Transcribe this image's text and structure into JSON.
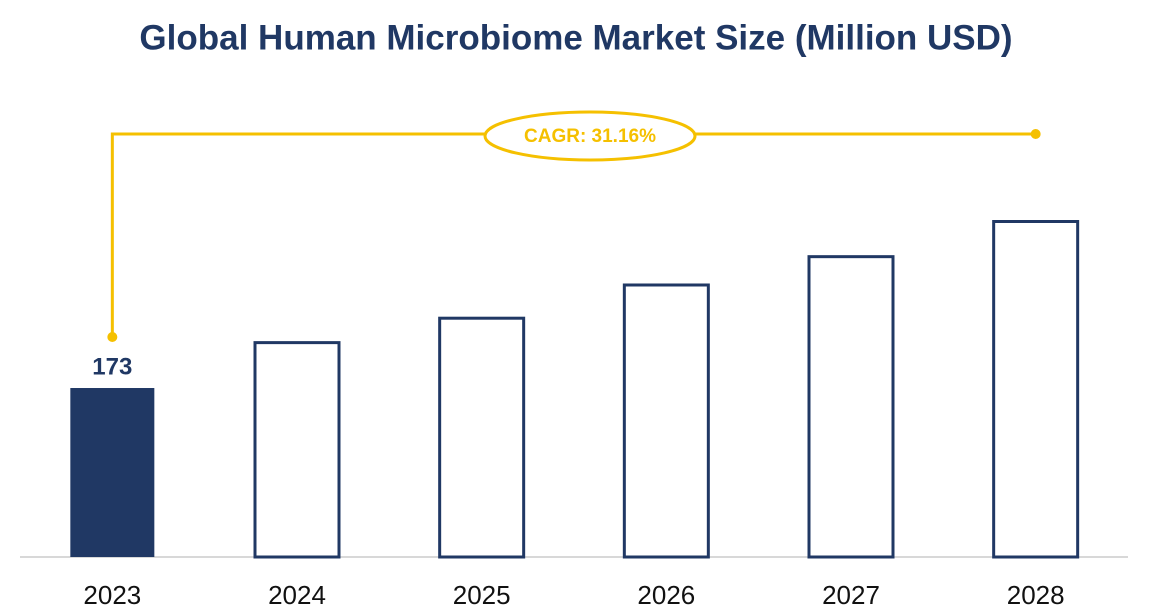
{
  "chart_data": {
    "type": "bar",
    "title": "Global Human Microbiome Market Size (Million USD)",
    "categories": [
      "2023",
      "2024",
      "2025",
      "2026",
      "2027",
      "2028"
    ],
    "values": [
      173,
      221,
      246,
      280,
      309,
      345
    ],
    "color": "#203864",
    "filled_index": 0,
    "annotation": "CAGR: 31.16%",
    "annotation_color": "#f5c000"
  }
}
